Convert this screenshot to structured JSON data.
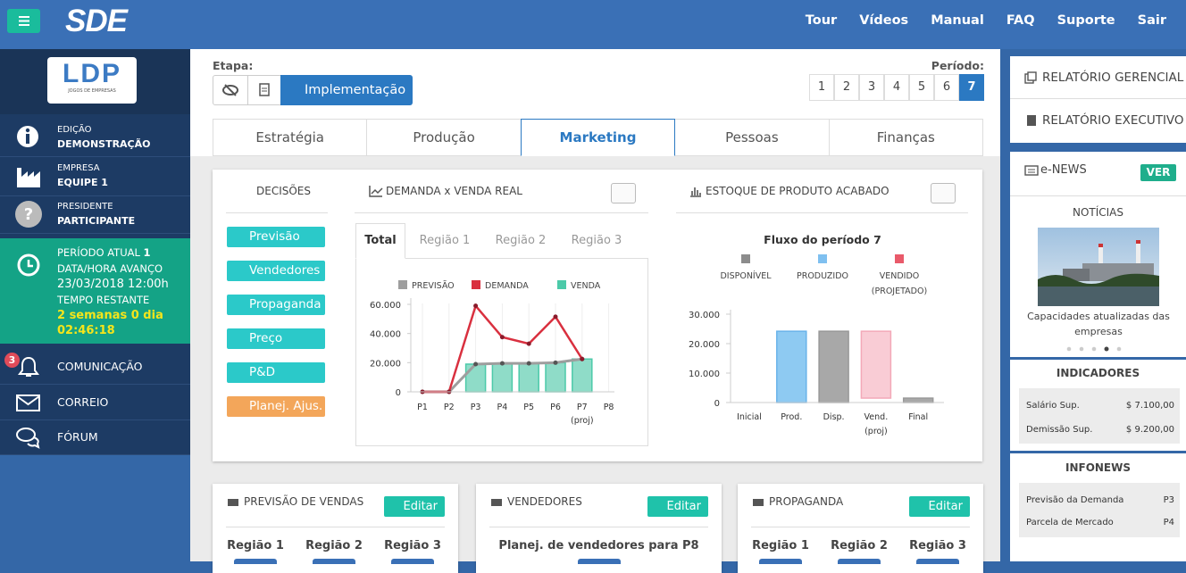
{
  "topbar": {
    "logo": "SDE",
    "nav": [
      "Tour",
      "Vídeos",
      "Manual",
      "FAQ",
      "Suporte",
      "Sair"
    ]
  },
  "sidebar": {
    "logo_text": "LDP",
    "logo_sub": "JOGOS DE EMPRESAS",
    "info": [
      {
        "label": "EDIÇÃO",
        "value": "DEMONSTRAÇÃO"
      },
      {
        "label": "EMPRESA",
        "value": "EQUIPE 1"
      },
      {
        "label": "PRESIDENTE",
        "value": "PARTICIPANTE"
      }
    ],
    "periodo_label": "PERÍODO ATUAL",
    "periodo": 1,
    "avanco_label": "DATA/HORA AVANÇO",
    "avanco": "23/03/2018 12:00h",
    "restante_label": "TEMPO RESTANTE",
    "restante": [
      "2 semanas 0 dia",
      "02:46:18"
    ],
    "menu": [
      {
        "label": "COMUNICAÇÃO",
        "badge": 3
      },
      {
        "label": "CORREIO"
      },
      {
        "label": "FÓRUM"
      }
    ]
  },
  "etapa": {
    "label": "Etapa:",
    "button": "Implementação"
  },
  "periodo": {
    "label": "Período:",
    "options": [
      1,
      2,
      3,
      4,
      5,
      6,
      7
    ],
    "active": 6
  },
  "tabs": {
    "items": [
      "Estratégia",
      "Produção",
      "Marketing",
      "Pessoas",
      "Finanças"
    ],
    "active": 2
  },
  "decisoes": {
    "title": "DECISÕES",
    "buttons": [
      "Previsão",
      "Vendedores",
      "Propaganda",
      "Preço",
      "P&D",
      "Planej. Ajus."
    ]
  },
  "demanda_chart": {
    "type": "line",
    "title": "DEMANDA x VENDA REAL",
    "tabs": [
      "Total",
      "Região 1",
      "Região 2",
      "Região 3"
    ],
    "categories": [
      "P1",
      "P2",
      "P3",
      "P4",
      "P5",
      "P6",
      "P7 (proj)",
      "P8"
    ],
    "series": [
      {
        "name": "PREVISÃO",
        "color": "#9e9e9e",
        "values": [
          0,
          0,
          19000,
          19500,
          19500,
          20000,
          22500,
          null
        ]
      },
      {
        "name": "DEMANDA",
        "color": "#d9303f",
        "values": [
          0,
          0,
          59000,
          37500,
          33000,
          51500,
          22500,
          null
        ]
      },
      {
        "name": "VENDA",
        "color": "#4ccaa9",
        "values": [
          0,
          0,
          19000,
          19500,
          19500,
          20000,
          22500,
          null
        ]
      }
    ],
    "ylim": [
      0,
      60000
    ],
    "yticks": [
      0,
      {
        "value": 20000,
        "label": "20.000"
      },
      {
        "value": 40000,
        "label": "40.000"
      },
      {
        "value": 60000,
        "label": "60.000"
      }
    ]
  },
  "estoque_chart": {
    "type": "waterfall",
    "title": "ESTOQUE DE PRODUTO ACABADO",
    "subtitle": "Fluxo do período 7",
    "categories": [
      "Inicial",
      "Prod.",
      "Disp.",
      "Vend. (proj)",
      "Final"
    ],
    "values": [
      0,
      24200,
      24200,
      22700,
      1500
    ],
    "colors": [
      "#a8a8a8",
      "#8ecaf2",
      "#a8a8a8",
      "#f9ccd5",
      "#a8a8a8"
    ],
    "series": [
      {
        "name": "DISPONÍVEL",
        "color": "#8c8c8c"
      },
      {
        "name": "PRODUZIDO",
        "color": "#7fc0f0"
      },
      {
        "name": "VENDIDO (PROJETADO)",
        "color": "#e95a6a"
      }
    ],
    "ylim": [
      0,
      30000
    ],
    "yticks": [
      0,
      {
        "value": 10000,
        "label": "10.000"
      },
      {
        "value": 20000,
        "label": "20.000"
      },
      {
        "value": 30000,
        "label": "30.000"
      }
    ]
  },
  "cards": [
    {
      "title": "PREVISÃO DE VENDAS",
      "button": "Editar",
      "columns": [
        "Região 1",
        "Região 2",
        "Região 3"
      ]
    },
    {
      "title": "VENDEDORES",
      "button": "Editar",
      "columns": [
        "Planej. de vendedores para P8"
      ]
    },
    {
      "title": "PROPAGANDA",
      "button": "Editar",
      "columns": [
        "Região 1",
        "Região 2",
        "Região 3"
      ]
    }
  ],
  "right": {
    "reports": [
      "RELATÓRIO GERENCIAL",
      "RELATÓRIO EXECUTIVO"
    ],
    "enews": {
      "title": "e-NEWS",
      "button": "VER",
      "noticias": "NOTÍCIAS",
      "caption": "Capacidades atualizadas das empresas"
    },
    "indicadores": {
      "title": "INDICADORES",
      "rows": [
        [
          "Salário Sup.",
          "$ 7.100,00"
        ],
        [
          "Demissão Sup.",
          "$ 9.200,00"
        ]
      ]
    },
    "infonews": {
      "title": "INFONEWS",
      "rows": [
        [
          "Previsão da Demanda",
          "P3"
        ],
        [
          "Parcela de Mercado",
          "P4"
        ]
      ]
    }
  }
}
